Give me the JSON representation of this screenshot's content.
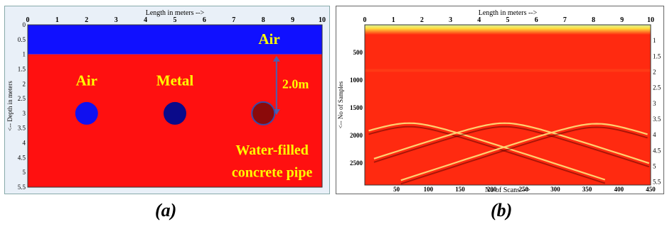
{
  "panel_a": {
    "caption": "(a)",
    "x_title": "Length in meters -->",
    "y_title": "<-- Depth in meters",
    "x_ticks": [
      "0",
      "1",
      "2",
      "3",
      "4",
      "5",
      "6",
      "7",
      "8",
      "9",
      "10"
    ],
    "y_ticks": [
      "0",
      "0.5",
      "1",
      "1.5",
      "2",
      "2.5",
      "3",
      "3.5",
      "4",
      "4.5",
      "5",
      "5.5"
    ],
    "labels": {
      "air_layer": "Air",
      "pipe_air": "Air",
      "pipe_metal": "Metal",
      "depth": "2.0m",
      "pipe_water_line1": "Water-filled",
      "pipe_water_line2": "concrete pipe"
    },
    "colors": {
      "air_layer": "#1010ff",
      "soil": "#ff1010",
      "pipe_air": "#1010f0",
      "pipe_metal": "#0a0a8a",
      "pipe_water": "#8b0a0a",
      "label_yellow": "#ffff00",
      "arrow": "#4a5fb0"
    },
    "pipes": [
      {
        "x_m": 2,
        "depth_m": 3,
        "kind": "air"
      },
      {
        "x_m": 5,
        "depth_m": 3,
        "kind": "metal"
      },
      {
        "x_m": 8,
        "depth_m": 3,
        "kind": "water"
      }
    ]
  },
  "panel_b": {
    "caption": "(b)",
    "top_title": "Length in meters -->",
    "bottom_title": "No of Scans -->",
    "left_title": "<-- No of Samples",
    "top_ticks": [
      "0",
      "1",
      "2",
      "3",
      "4",
      "5",
      "6",
      "7",
      "8",
      "9",
      "10"
    ],
    "bottom_ticks": [
      "50",
      "100",
      "150",
      "200",
      "250",
      "300",
      "350",
      "400",
      "450"
    ],
    "left_ticks": [
      "500",
      "1000",
      "1500",
      "2000",
      "2500"
    ],
    "right_ticks": [
      "1",
      "1.5",
      "2",
      "2.5",
      "3",
      "3.5",
      "4",
      "4.5",
      "5",
      "5.5"
    ],
    "colors": {
      "background": "#ff2a10",
      "hyperbola": "#ffd070",
      "surface_band": "#ffe040"
    },
    "hyperbolas": [
      {
        "apex_scan": 70,
        "apex_sample": 1780
      },
      {
        "apex_scan": 220,
        "apex_sample": 1780
      },
      {
        "apex_scan": 365,
        "apex_sample": 1790
      }
    ]
  }
}
